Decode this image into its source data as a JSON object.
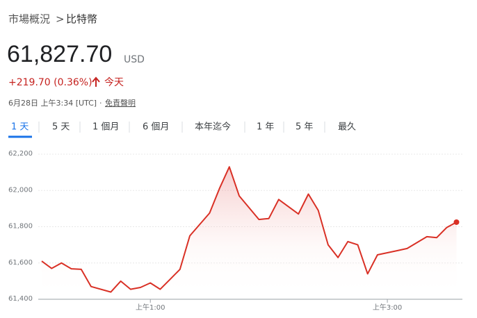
{
  "header": {
    "breadcrumb": {
      "parent": "市場概況",
      "separator": ">",
      "current": "比特幣"
    },
    "price": "61,827.70",
    "currency": "USD",
    "change": "+219.70 (0.36%)",
    "change_period": "今天",
    "timestamp": "6月28日 上午3:34 [UTC]",
    "dot": "·",
    "disclaimer": "免責聲明"
  },
  "tabs": [
    "1 天",
    "5 天",
    "1 個月",
    "6 個月",
    "本年迄今",
    "1 年",
    "5 年",
    "最久"
  ],
  "chart_data": {
    "type": "line",
    "color": "#d93025",
    "grid": true,
    "x": [
      5,
      10,
      15,
      20,
      25,
      30,
      40,
      45,
      50,
      55,
      60,
      65,
      70,
      75,
      80,
      90,
      95,
      100,
      105,
      115,
      120,
      125,
      135,
      140,
      145,
      150,
      155,
      160,
      165,
      170,
      175,
      185,
      190,
      200,
      205,
      210,
      215
    ],
    "values": [
      61610,
      61570,
      61600,
      61568,
      61565,
      61470,
      61440,
      61500,
      61455,
      61465,
      61490,
      61455,
      61510,
      61565,
      61750,
      61875,
      62010,
      62130,
      61970,
      61840,
      61845,
      61950,
      61870,
      61980,
      61890,
      61700,
      61630,
      61718,
      61700,
      61540,
      61645,
      61668,
      61680,
      61745,
      61740,
      61795,
      61825
    ],
    "xlim": [
      5,
      218
    ],
    "xticks": [
      {
        "value": 60,
        "label": "上午1:00"
      },
      {
        "value": 180,
        "label": "上午3:00"
      }
    ],
    "ylim": [
      61400,
      62200
    ],
    "yticks": [
      {
        "value": 61400,
        "label": "61,400"
      },
      {
        "value": 61600,
        "label": "61,600"
      },
      {
        "value": 61800,
        "label": "61,800"
      },
      {
        "value": 62000,
        "label": "62,000"
      },
      {
        "value": 62200,
        "label": "62,200"
      }
    ]
  }
}
